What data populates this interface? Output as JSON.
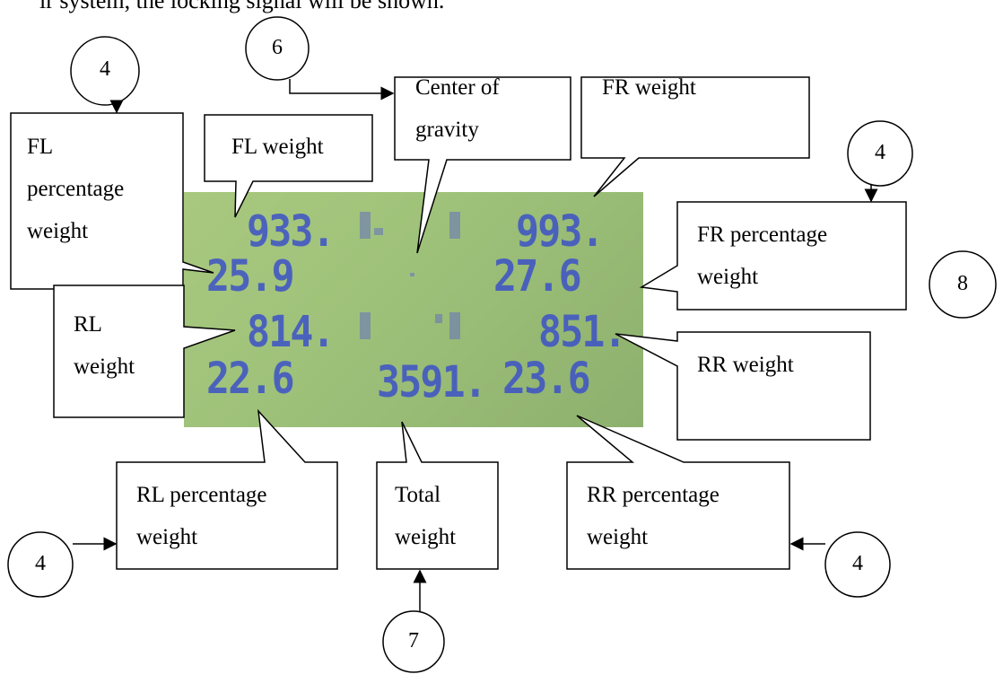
{
  "top_line": "ir system, the locking signal will be shown.",
  "lcd": {
    "fl_weight": "933.",
    "fr_weight": "993.",
    "fl_percent": "25.9",
    "fr_percent": "27.6",
    "rl_weight": "814.",
    "rr_weight": "851.",
    "rl_percent": "22.6",
    "total_weight": "3591.",
    "rr_percent": "23.6"
  },
  "callouts": {
    "fl_percentage": "FL\npercentage\nweight",
    "fl_weight": "FL weight",
    "center_of_gravity": "Center of\ngravity",
    "fr_weight": "FR weight",
    "fr_percentage": "FR percentage\nweight",
    "rl_weight": "RL\nweight",
    "rr_weight": "RR weight",
    "rl_percentage": "RL percentage\nweight",
    "total_weight": "Total\nweight",
    "rr_percentage": "RR percentage\nweight"
  },
  "markers": {
    "top_left": "4",
    "six": "6",
    "right_four": "4",
    "eight": "8",
    "bottom_left": "4",
    "seven": "7",
    "bottom_right": "4"
  }
}
